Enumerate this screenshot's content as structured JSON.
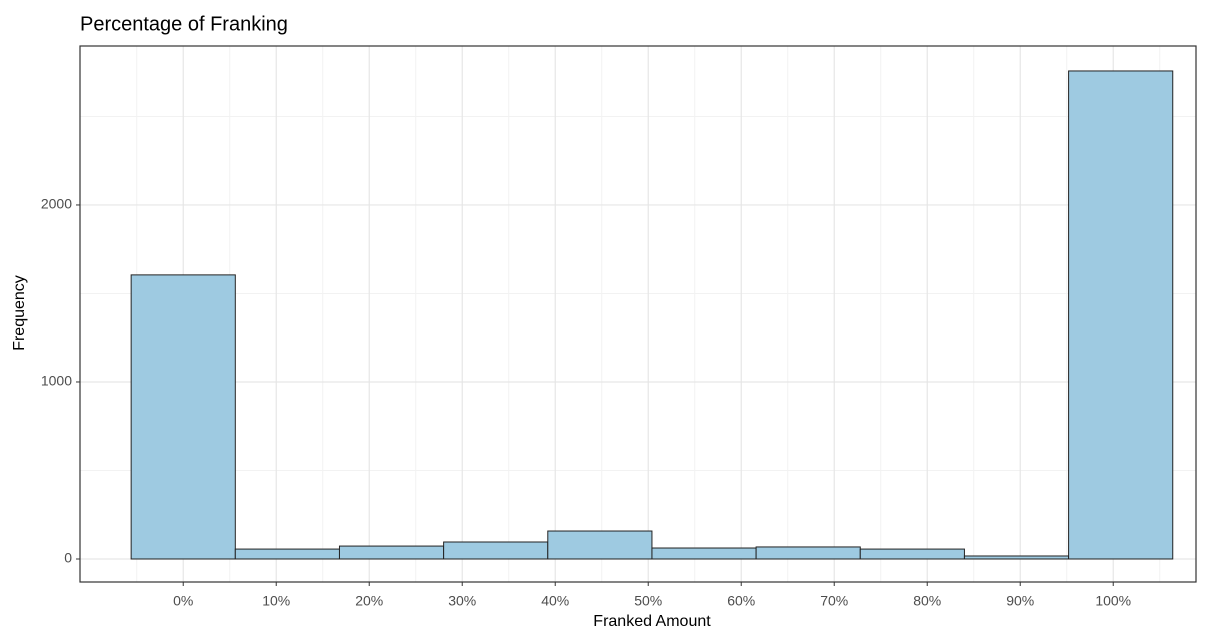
{
  "chart_data": {
    "type": "histogram",
    "title": "Percentage of Franking",
    "x_label": "Franked Amount",
    "y_label": "Frequency",
    "bins": [
      -5.6,
      5.6,
      16.8,
      28,
      39.2,
      50.4,
      61.6,
      72.8,
      84,
      95.2,
      106.4
    ],
    "values": [
      1605,
      56,
      73,
      96,
      158,
      62,
      68,
      56,
      17,
      2757
    ],
    "color": "#9ecae1",
    "edge_color": "#222222",
    "xlim": [
      -11.1,
      108.9
    ],
    "ylim": [
      -130,
      2898
    ],
    "xticks": [
      {
        "value": 0,
        "label": "0%"
      },
      {
        "value": 10,
        "label": "10%"
      },
      {
        "value": 20,
        "label": "20%"
      },
      {
        "value": 30,
        "label": "30%"
      },
      {
        "value": 40,
        "label": "40%"
      },
      {
        "value": 50,
        "label": "50%"
      },
      {
        "value": 60,
        "label": "60%"
      },
      {
        "value": 70,
        "label": "70%"
      },
      {
        "value": 80,
        "label": "80%"
      },
      {
        "value": 90,
        "label": "90%"
      },
      {
        "value": 100,
        "label": "100%"
      }
    ],
    "yticks": [
      0,
      1000,
      2000
    ],
    "x_minor_ticks": [
      -5,
      5,
      15,
      25,
      35,
      45,
      55,
      65,
      75,
      85,
      95,
      105
    ],
    "y_minor_ticks": [
      500,
      1500,
      2500
    ],
    "grid": true
  }
}
